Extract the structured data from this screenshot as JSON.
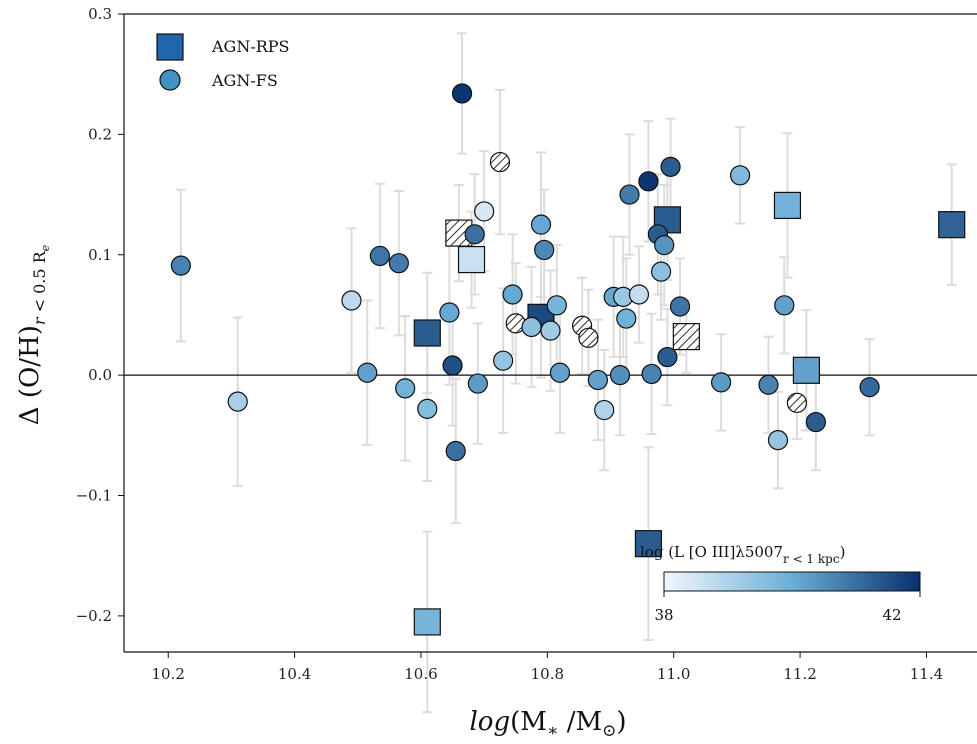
{
  "chart_data": {
    "type": "scatter",
    "xlabel": "log(M_* / M_⊙)",
    "ylabel": "Δ (O/H)_{r < 0.5 R_e}",
    "xlim": [
      10.13,
      11.48
    ],
    "ylim": [
      -0.23,
      0.3
    ],
    "x_ticks": [
      "10.2",
      "10.4",
      "10.6",
      "10.8",
      "11.0",
      "11.2",
      "11.4"
    ],
    "y_ticks": [
      "0.3",
      "0.2",
      "0.1",
      "0.0",
      "−0.1",
      "−0.2"
    ],
    "grid": false,
    "zero_line": true,
    "legend_position": "top-left",
    "colorscale": {
      "low": "#f2f7fc",
      "mid": "#6baed6",
      "high": "#08306b"
    },
    "colorbar": {
      "label": "log (L [O III]λ5007_{r < 1 kpc})",
      "min": 38,
      "max": 42,
      "tick_labels": [
        "38",
        "42"
      ],
      "position": "lower-right"
    },
    "series": [
      {
        "name": "AGN-RPS",
        "marker": "square",
        "points": [
          {
            "x": 10.61,
            "y": 0.035,
            "err": 0.05,
            "c": 41.3
          },
          {
            "x": 10.61,
            "y": -0.205,
            "err": 0.075,
            "c": 39.8
          },
          {
            "x": 10.66,
            "y": 0.118,
            "err": 0.04,
            "hatched": true
          },
          {
            "x": 10.68,
            "y": 0.096,
            "err": 0.04,
            "c": 38.6
          },
          {
            "x": 10.79,
            "y": 0.048,
            "err": 0.05,
            "c": 41.6
          },
          {
            "x": 10.96,
            "y": -0.14,
            "err": 0.08,
            "c": 41.3
          },
          {
            "x": 10.99,
            "y": 0.129,
            "err": 0.05,
            "c": 41.3
          },
          {
            "x": 11.02,
            "y": 0.032,
            "err": 0.03,
            "hatched": true
          },
          {
            "x": 11.18,
            "y": 0.141,
            "err": 0.06,
            "c": 39.9
          },
          {
            "x": 11.21,
            "y": 0.004,
            "err": 0.05,
            "c": 40.2
          },
          {
            "x": 11.44,
            "y": 0.125,
            "err": 0.05,
            "c": 41.2
          }
        ]
      },
      {
        "name": "AGN-FS",
        "marker": "circle",
        "points": [
          {
            "x": 10.22,
            "y": 0.091,
            "err": 0.063,
            "c": 40.7
          },
          {
            "x": 10.31,
            "y": -0.022,
            "err": 0.07,
            "c": 39.1
          },
          {
            "x": 10.49,
            "y": 0.062,
            "err": 0.06,
            "c": 38.8
          },
          {
            "x": 10.515,
            "y": 0.002,
            "err": 0.06,
            "c": 40.2
          },
          {
            "x": 10.535,
            "y": 0.099,
            "err": 0.06,
            "c": 40.9
          },
          {
            "x": 10.565,
            "y": 0.093,
            "err": 0.06,
            "c": 40.8
          },
          {
            "x": 10.575,
            "y": -0.011,
            "err": 0.06,
            "c": 39.9
          },
          {
            "x": 10.61,
            "y": -0.028,
            "err": 0.06,
            "c": 39.6
          },
          {
            "x": 10.645,
            "y": 0.052,
            "err": 0.06,
            "c": 40.1
          },
          {
            "x": 10.65,
            "y": 0.008,
            "err": 0.05,
            "c": 41.5
          },
          {
            "x": 10.655,
            "y": -0.063,
            "err": 0.06,
            "c": 41.0
          },
          {
            "x": 10.665,
            "y": 0.234,
            "err": 0.05,
            "c": 41.9
          },
          {
            "x": 10.685,
            "y": 0.117,
            "err": 0.05,
            "c": 41.0
          },
          {
            "x": 10.69,
            "y": -0.007,
            "err": 0.05,
            "c": 40.3
          },
          {
            "x": 10.7,
            "y": 0.136,
            "err": 0.05,
            "c": 38.4
          },
          {
            "x": 10.725,
            "y": 0.177,
            "err": 0.06,
            "hatched": true
          },
          {
            "x": 10.73,
            "y": 0.012,
            "err": 0.06,
            "c": 39.4
          },
          {
            "x": 10.745,
            "y": 0.067,
            "err": 0.05,
            "c": 40.1
          },
          {
            "x": 10.75,
            "y": 0.043,
            "err": 0.05,
            "hatched": true
          },
          {
            "x": 10.775,
            "y": 0.04,
            "err": 0.05,
            "c": 39.5
          },
          {
            "x": 10.79,
            "y": 0.125,
            "err": 0.06,
            "c": 40.1
          },
          {
            "x": 10.795,
            "y": 0.104,
            "err": 0.05,
            "c": 40.6
          },
          {
            "x": 10.805,
            "y": 0.037,
            "err": 0.05,
            "c": 39.2
          },
          {
            "x": 10.815,
            "y": 0.058,
            "err": 0.05,
            "c": 39.8
          },
          {
            "x": 10.82,
            "y": 0.002,
            "err": 0.05,
            "c": 40.2
          },
          {
            "x": 10.855,
            "y": 0.041,
            "err": 0.04,
            "hatched": true
          },
          {
            "x": 10.865,
            "y": 0.031,
            "err": 0.04,
            "hatched": true
          },
          {
            "x": 10.88,
            "y": -0.004,
            "err": 0.05,
            "c": 40.2
          },
          {
            "x": 10.89,
            "y": -0.029,
            "err": 0.05,
            "c": 39.0
          },
          {
            "x": 10.905,
            "y": 0.065,
            "err": 0.05,
            "c": 40.1
          },
          {
            "x": 10.915,
            "y": 0.0,
            "err": 0.05,
            "c": 40.5
          },
          {
            "x": 10.92,
            "y": 0.065,
            "err": 0.05,
            "c": 39.3
          },
          {
            "x": 10.925,
            "y": 0.047,
            "err": 0.05,
            "c": 39.9
          },
          {
            "x": 10.93,
            "y": 0.15,
            "err": 0.05,
            "c": 40.8
          },
          {
            "x": 10.945,
            "y": 0.067,
            "err": 0.04,
            "c": 38.7
          },
          {
            "x": 10.96,
            "y": 0.161,
            "err": 0.05,
            "c": 41.9
          },
          {
            "x": 10.965,
            "y": 0.001,
            "err": 0.05,
            "c": 40.7
          },
          {
            "x": 10.975,
            "y": 0.117,
            "err": 0.05,
            "c": 41.3
          },
          {
            "x": 10.98,
            "y": 0.086,
            "err": 0.04,
            "c": 39.5
          },
          {
            "x": 10.985,
            "y": 0.108,
            "err": 0.05,
            "c": 40.4
          },
          {
            "x": 10.99,
            "y": 0.015,
            "err": 0.04,
            "c": 41.3
          },
          {
            "x": 10.995,
            "y": 0.173,
            "err": 0.04,
            "c": 41.3
          },
          {
            "x": 11.01,
            "y": 0.057,
            "err": 0.04,
            "c": 40.9
          },
          {
            "x": 11.075,
            "y": -0.006,
            "err": 0.04,
            "c": 40.3
          },
          {
            "x": 11.105,
            "y": 0.166,
            "err": 0.04,
            "c": 39.7
          },
          {
            "x": 11.15,
            "y": -0.008,
            "err": 0.04,
            "c": 40.7
          },
          {
            "x": 11.165,
            "y": -0.054,
            "err": 0.04,
            "c": 39.4
          },
          {
            "x": 11.175,
            "y": 0.058,
            "err": 0.04,
            "c": 40.2
          },
          {
            "x": 11.195,
            "y": -0.023,
            "err": 0.03,
            "hatched": true
          },
          {
            "x": 11.225,
            "y": -0.039,
            "err": 0.04,
            "c": 41.3
          },
          {
            "x": 11.31,
            "y": -0.01,
            "err": 0.04,
            "c": 41.1
          }
        ]
      }
    ]
  }
}
